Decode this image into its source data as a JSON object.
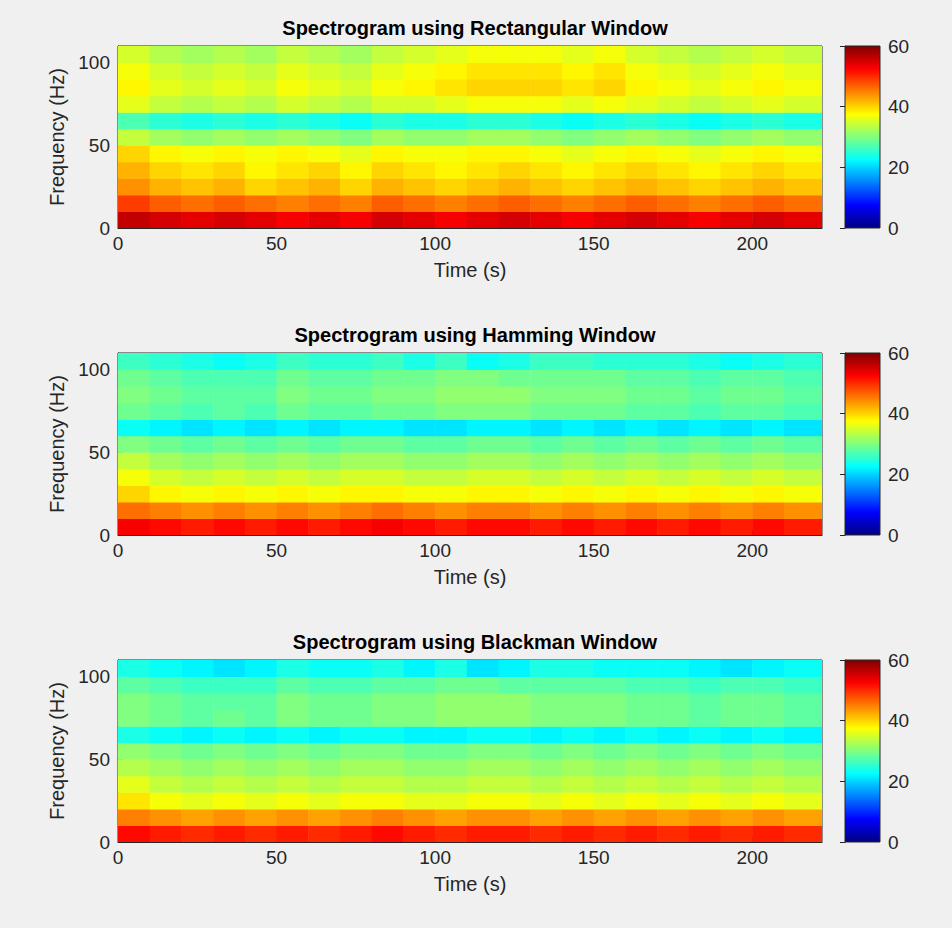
{
  "chart_data": [
    {
      "type": "heatmap",
      "title": "Spectrogram using Rectangular Window",
      "xlabel": "Time (s)",
      "ylabel": "Frequency (Hz)",
      "xlim": [
        0,
        222
      ],
      "xticks": [
        0,
        50,
        100,
        150,
        200
      ],
      "ylim": [
        0,
        110
      ],
      "yticks": [
        0,
        50,
        100
      ],
      "x_edges": [
        0,
        10,
        20,
        30,
        40,
        50,
        60,
        70,
        80,
        90,
        100,
        110,
        120,
        130,
        140,
        150,
        160,
        170,
        180,
        190,
        200,
        210,
        222
      ],
      "y_edges": [
        0,
        10,
        20,
        30,
        40,
        50,
        60,
        70,
        80,
        90,
        100,
        110
      ],
      "values": [
        [
          56,
          55,
          54,
          55,
          54,
          53,
          54,
          53,
          55,
          54,
          53,
          54,
          55,
          54,
          53,
          54,
          55,
          54,
          53,
          54,
          55,
          54
        ],
        [
          49,
          47,
          46,
          47,
          46,
          45,
          46,
          45,
          47,
          46,
          45,
          46,
          47,
          46,
          45,
          46,
          47,
          46,
          45,
          46,
          47,
          46
        ],
        [
          44,
          42,
          41,
          42,
          40,
          41,
          42,
          40,
          42,
          41,
          40,
          41,
          42,
          41,
          40,
          41,
          42,
          41,
          40,
          41,
          42,
          41
        ],
        [
          42,
          40,
          39,
          40,
          38,
          39,
          40,
          38,
          40,
          39,
          38,
          39,
          40,
          39,
          38,
          39,
          40,
          39,
          38,
          39,
          40,
          39
        ],
        [
          40,
          38,
          37,
          38,
          37,
          38,
          37,
          36,
          38,
          37,
          37,
          38,
          38,
          37,
          36,
          37,
          38,
          37,
          36,
          37,
          38,
          37
        ],
        [
          34,
          32,
          31,
          32,
          31,
          32,
          31,
          30,
          32,
          31,
          31,
          32,
          32,
          31,
          30,
          31,
          32,
          31,
          30,
          31,
          32,
          31
        ],
        [
          27,
          25,
          24,
          25,
          24,
          25,
          24,
          23,
          25,
          24,
          24,
          25,
          25,
          24,
          23,
          24,
          25,
          24,
          23,
          24,
          25,
          24
        ],
        [
          36,
          34,
          33,
          34,
          33,
          35,
          34,
          33,
          35,
          35,
          36,
          37,
          37,
          37,
          36,
          37,
          36,
          35,
          34,
          35,
          36,
          35
        ],
        [
          38,
          36,
          35,
          36,
          35,
          37,
          36,
          35,
          37,
          38,
          39,
          40,
          40,
          40,
          39,
          40,
          38,
          37,
          36,
          37,
          38,
          37
        ],
        [
          37,
          35,
          34,
          35,
          34,
          36,
          35,
          34,
          36,
          37,
          38,
          39,
          39,
          39,
          38,
          39,
          37,
          36,
          35,
          36,
          37,
          36
        ],
        [
          35,
          33,
          32,
          33,
          32,
          34,
          33,
          32,
          34,
          35,
          36,
          37,
          37,
          37,
          36,
          37,
          35,
          34,
          33,
          34,
          35,
          34
        ]
      ],
      "colorbar_range": [
        0,
        60
      ],
      "colorbar_ticks": [
        0,
        20,
        40,
        60
      ]
    },
    {
      "type": "heatmap",
      "title": "Spectrogram using Hamming Window",
      "xlabel": "Time (s)",
      "ylabel": "Frequency (Hz)",
      "xlim": [
        0,
        222
      ],
      "xticks": [
        0,
        50,
        100,
        150,
        200
      ],
      "ylim": [
        0,
        110
      ],
      "yticks": [
        0,
        50,
        100
      ],
      "x_edges": [
        0,
        10,
        20,
        30,
        40,
        50,
        60,
        70,
        80,
        90,
        100,
        110,
        120,
        130,
        140,
        150,
        160,
        170,
        180,
        190,
        200,
        210,
        222
      ],
      "y_edges": [
        0,
        10,
        20,
        30,
        40,
        50,
        60,
        70,
        80,
        90,
        100,
        110
      ],
      "values": [
        [
          53,
          52,
          51,
          52,
          51,
          52,
          51,
          52,
          53,
          52,
          51,
          52,
          52,
          51,
          52,
          51,
          52,
          51,
          52,
          51,
          52,
          51
        ],
        [
          46,
          45,
          44,
          45,
          44,
          45,
          44,
          45,
          46,
          45,
          44,
          45,
          45,
          44,
          45,
          44,
          45,
          44,
          45,
          44,
          45,
          44
        ],
        [
          40,
          38,
          37,
          38,
          37,
          38,
          37,
          38,
          38,
          37,
          37,
          38,
          38,
          37,
          38,
          37,
          38,
          37,
          38,
          37,
          38,
          37
        ],
        [
          37,
          35,
          34,
          35,
          34,
          35,
          34,
          35,
          35,
          34,
          34,
          35,
          35,
          34,
          35,
          34,
          35,
          34,
          35,
          34,
          35,
          34
        ],
        [
          34,
          32,
          31,
          32,
          31,
          32,
          31,
          32,
          32,
          31,
          31,
          32,
          32,
          31,
          32,
          31,
          32,
          31,
          32,
          31,
          32,
          31
        ],
        [
          30,
          29,
          28,
          29,
          28,
          29,
          28,
          29,
          29,
          28,
          28,
          29,
          29,
          28,
          29,
          28,
          29,
          28,
          29,
          28,
          29,
          28
        ],
        [
          23,
          22,
          21,
          22,
          21,
          22,
          21,
          22,
          22,
          21,
          21,
          22,
          22,
          21,
          22,
          21,
          22,
          21,
          22,
          21,
          22,
          21
        ],
        [
          29,
          28,
          27,
          28,
          27,
          29,
          28,
          28,
          29,
          29,
          30,
          30,
          30,
          29,
          29,
          29,
          28,
          28,
          27,
          28,
          28,
          27
        ],
        [
          30,
          29,
          28,
          28,
          28,
          30,
          29,
          29,
          30,
          30,
          31,
          31,
          31,
          30,
          30,
          30,
          29,
          29,
          28,
          29,
          29,
          28
        ],
        [
          29,
          28,
          27,
          27,
          27,
          29,
          28,
          28,
          29,
          29,
          30,
          30,
          29,
          29,
          29,
          29,
          28,
          28,
          27,
          28,
          28,
          27
        ],
        [
          26,
          25,
          24,
          23,
          24,
          26,
          25,
          25,
          26,
          24,
          26,
          23,
          24,
          26,
          26,
          25,
          25,
          25,
          24,
          23,
          24,
          25
        ]
      ],
      "colorbar_range": [
        0,
        60
      ],
      "colorbar_ticks": [
        0,
        20,
        40,
        60
      ]
    },
    {
      "type": "heatmap",
      "title": "Spectrogram using Blackman Window",
      "xlabel": "Time (s)",
      "ylabel": "Frequency (Hz)",
      "xlim": [
        0,
        222
      ],
      "xticks": [
        0,
        50,
        100,
        150,
        200
      ],
      "ylim": [
        0,
        110
      ],
      "yticks": [
        0,
        50,
        100
      ],
      "x_edges": [
        0,
        10,
        20,
        30,
        40,
        50,
        60,
        70,
        80,
        90,
        100,
        110,
        120,
        130,
        140,
        150,
        160,
        170,
        180,
        190,
        200,
        210,
        222
      ],
      "y_edges": [
        0,
        10,
        20,
        30,
        40,
        50,
        60,
        70,
        80,
        90,
        100,
        110
      ],
      "values": [
        [
          52,
          51,
          50,
          51,
          50,
          51,
          50,
          51,
          52,
          51,
          50,
          51,
          51,
          50,
          51,
          50,
          51,
          50,
          51,
          50,
          51,
          50
        ],
        [
          45,
          44,
          43,
          44,
          43,
          44,
          43,
          44,
          45,
          44,
          43,
          44,
          44,
          43,
          44,
          43,
          44,
          43,
          44,
          43,
          44,
          43
        ],
        [
          39,
          37,
          36,
          37,
          36,
          37,
          36,
          37,
          37,
          36,
          36,
          37,
          37,
          36,
          37,
          36,
          37,
          36,
          37,
          36,
          37,
          36
        ],
        [
          36,
          34,
          33,
          34,
          33,
          34,
          33,
          34,
          34,
          33,
          33,
          34,
          34,
          33,
          34,
          33,
          34,
          33,
          34,
          33,
          34,
          33
        ],
        [
          33,
          32,
          31,
          32,
          31,
          32,
          31,
          32,
          32,
          31,
          31,
          32,
          32,
          31,
          32,
          31,
          32,
          31,
          32,
          31,
          32,
          31
        ],
        [
          31,
          30,
          29,
          30,
          29,
          30,
          29,
          30,
          30,
          29,
          29,
          30,
          30,
          29,
          30,
          29,
          30,
          29,
          30,
          29,
          30,
          29
        ],
        [
          24,
          23,
          22,
          23,
          22,
          23,
          22,
          23,
          23,
          22,
          22,
          23,
          23,
          22,
          23,
          22,
          23,
          22,
          23,
          22,
          23,
          22
        ],
        [
          30,
          29,
          28,
          29,
          28,
          30,
          29,
          29,
          30,
          30,
          31,
          31,
          31,
          30,
          30,
          30,
          29,
          29,
          28,
          29,
          29,
          28
        ],
        [
          30,
          29,
          28,
          28,
          28,
          30,
          29,
          29,
          30,
          30,
          31,
          31,
          31,
          30,
          30,
          30,
          29,
          29,
          28,
          29,
          29,
          28
        ],
        [
          28,
          27,
          26,
          26,
          26,
          28,
          27,
          27,
          28,
          28,
          29,
          29,
          28,
          28,
          28,
          28,
          27,
          27,
          26,
          27,
          27,
          26
        ],
        [
          24,
          23,
          22,
          21,
          22,
          24,
          23,
          23,
          24,
          22,
          24,
          21,
          22,
          24,
          24,
          23,
          23,
          23,
          22,
          21,
          22,
          23
        ]
      ],
      "colorbar_range": [
        0,
        60
      ],
      "colorbar_ticks": [
        0,
        20,
        40,
        60
      ]
    }
  ]
}
